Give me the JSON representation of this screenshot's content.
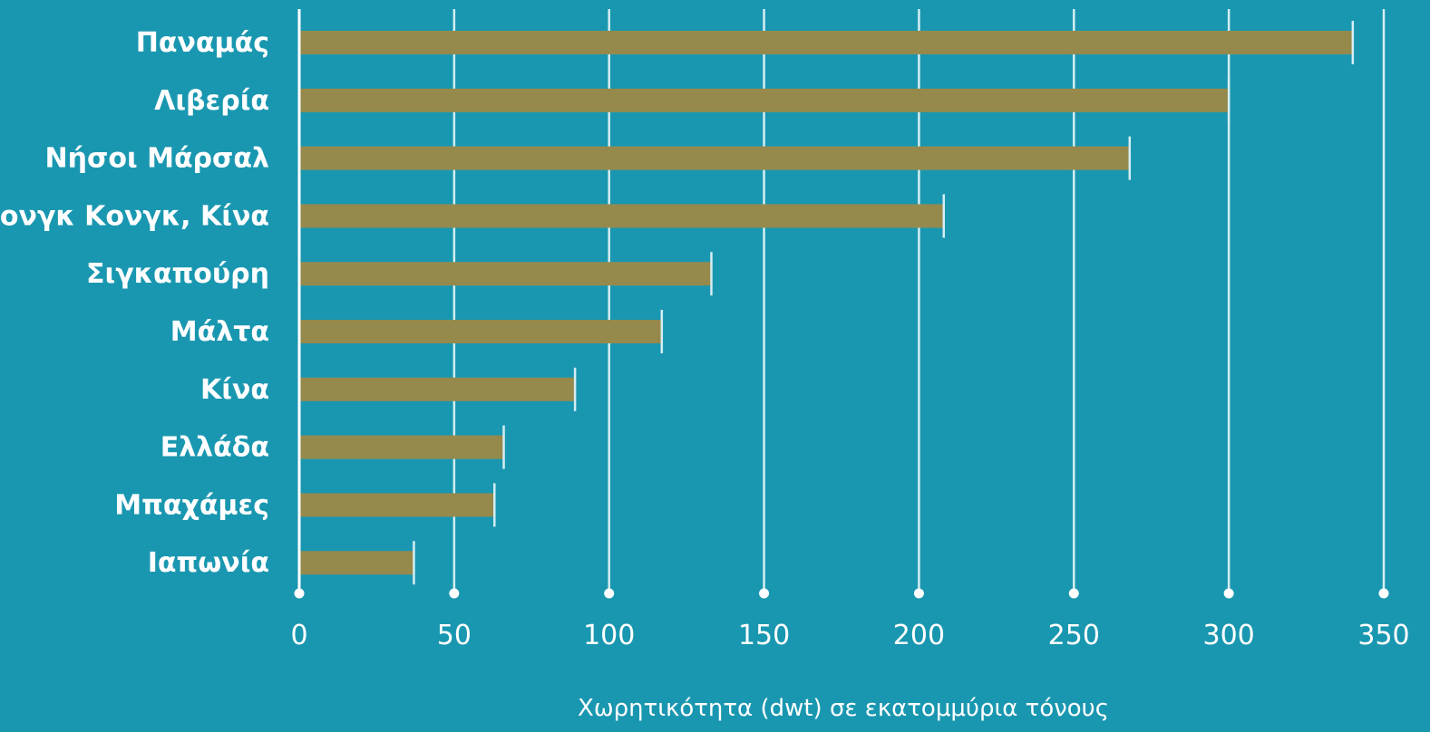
{
  "chart_data": {
    "type": "bar",
    "orientation": "horizontal",
    "categories": [
      "Παναμάς",
      "Λιβερία",
      "Νήσοι Μάρσαλ",
      "Χονγκ Κονγκ, Κίνα",
      "Σιγκαπούρη",
      "Μάλτα",
      "Κίνα",
      "Ελλάδα",
      "Μπαχάμες",
      "Ιαπωνία"
    ],
    "values": [
      340,
      300,
      268,
      208,
      133,
      117,
      89,
      66,
      63,
      37
    ],
    "title": "",
    "xlabel": "Χωρητικότητα (dwt) σε εκατομμύρια τόνους",
    "ylabel": "",
    "xlim": [
      0,
      350
    ],
    "xticks": [
      0,
      50,
      100,
      150,
      200,
      250,
      300,
      350
    ],
    "xtick_labels": [
      "0",
      "50",
      "100",
      "150",
      "200",
      "250",
      "300",
      "350"
    ],
    "grid": "vertical",
    "legend": "none",
    "colors": {
      "background": "#1a97b0",
      "bar": "#958a4c",
      "grid": "#d4eef3",
      "text": "#ffffff"
    }
  }
}
